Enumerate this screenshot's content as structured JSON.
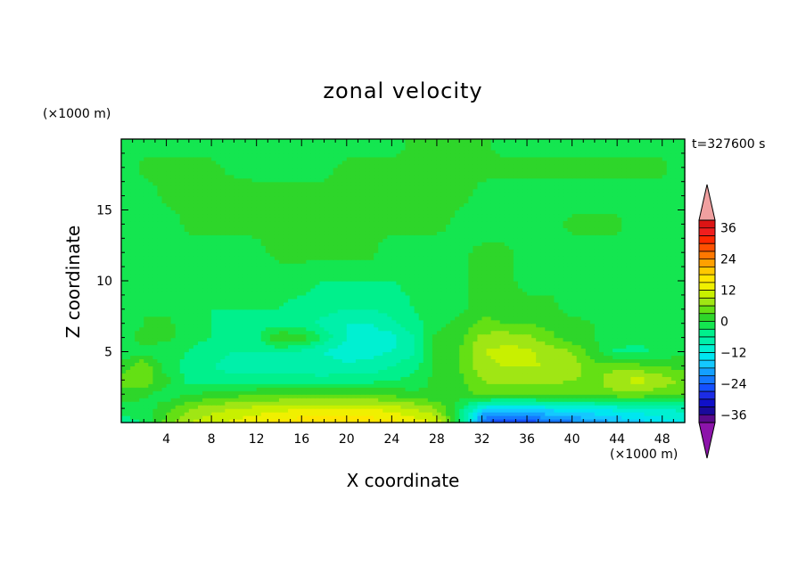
{
  "chart_data": {
    "type": "heatmap",
    "title": "zonal velocity",
    "xlabel": "X coordinate",
    "ylabel": "Z coordinate",
    "x_unit": "(×1000 m)",
    "y_unit": "(×1000 m)",
    "time_label": "t=327600 s",
    "xlim": [
      0,
      50
    ],
    "ylim": [
      0,
      20
    ],
    "xticks": [
      4,
      8,
      12,
      16,
      20,
      24,
      28,
      32,
      36,
      40,
      44,
      48
    ],
    "yticks": [
      5,
      10,
      15
    ],
    "colorbar": {
      "ticks": [
        36,
        24,
        12,
        0,
        -12,
        -24,
        -36
      ],
      "levels": [
        -39,
        -36,
        -33,
        -30,
        -27,
        -24,
        -21,
        -18,
        -15,
        -12,
        -9,
        -6,
        -3,
        0,
        3,
        6,
        9,
        12,
        15,
        18,
        21,
        24,
        27,
        30,
        33,
        36,
        39
      ],
      "colors": [
        "#5a0a8c",
        "#1a0a9c",
        "#1010c8",
        "#1c2ce6",
        "#1450ff",
        "#1478ff",
        "#14a0ff",
        "#14c8ff",
        "#00e6f0",
        "#00f0d2",
        "#00f0aa",
        "#00f08c",
        "#14e650",
        "#2ed62a",
        "#64e014",
        "#a0e614",
        "#c8f000",
        "#f0f000",
        "#ffe600",
        "#ffc800",
        "#ffa000",
        "#ff7800",
        "#ff5000",
        "#ff2800",
        "#f01e1e",
        "#dc1414"
      ],
      "under_color": "#8c14aa",
      "over_color": "#f0a0a0"
    },
    "field": {
      "description_grid": "approximate zonal velocity in m/s",
      "x": [
        0,
        2,
        4,
        6,
        8,
        10,
        12,
        14,
        16,
        18,
        20,
        22,
        24,
        26,
        28,
        30,
        32,
        34,
        36,
        38,
        40,
        42,
        44,
        46,
        48,
        50
      ],
      "z": [
        0,
        1,
        2,
        3,
        4,
        5,
        6,
        7,
        8,
        10,
        12,
        14,
        16,
        18,
        20
      ],
      "values": [
        [
          -4,
          -3,
          4,
          9,
          11,
          13,
          15,
          16,
          17,
          17,
          17,
          17,
          16,
          14,
          12,
          -3,
          -24,
          -28,
          -26,
          -24,
          -22,
          -20,
          -18,
          -16,
          -14,
          -12
        ],
        [
          -2,
          -2,
          2,
          6,
          8,
          9,
          10,
          11,
          12,
          12,
          12,
          12,
          11,
          9,
          6,
          -2,
          -14,
          -16,
          -15,
          -14,
          -13,
          -12,
          -11,
          -10,
          -9,
          -8
        ],
        [
          2,
          1,
          -2,
          0,
          1,
          2,
          3,
          3,
          3,
          3,
          3,
          3,
          2,
          1,
          0,
          1,
          4,
          4,
          4,
          4,
          3,
          4,
          5,
          5,
          4,
          3
        ],
        [
          4,
          5,
          1,
          -4,
          -5,
          -5,
          -5,
          -5,
          -5,
          -5,
          -4,
          -4,
          -3,
          -2,
          1,
          2,
          6,
          7,
          7,
          7,
          6,
          5,
          9,
          10,
          8,
          5
        ],
        [
          1,
          6,
          -2,
          -4,
          -6,
          -7,
          -7,
          -7,
          -7,
          -8,
          -8,
          -8,
          -6,
          -4,
          1,
          3,
          8,
          9,
          9,
          9,
          8,
          4,
          5,
          4,
          3,
          2
        ],
        [
          -2,
          -1,
          -2,
          -3,
          -5,
          -6,
          -6,
          -6,
          -7,
          -9,
          -11,
          -10,
          -9,
          -6,
          1,
          3,
          9,
          10,
          10,
          8,
          6,
          1,
          -4,
          -4,
          -2,
          -1
        ],
        [
          -1,
          1,
          1,
          -2,
          -3,
          -4,
          -4,
          3,
          2,
          -4,
          -9,
          -11,
          -10,
          -6,
          1,
          2,
          7,
          8,
          7,
          4,
          1,
          0,
          -1,
          -2,
          -1,
          -1
        ],
        [
          -2,
          0,
          1,
          -2,
          -3,
          -4,
          -4,
          -4,
          -5,
          -7,
          -9,
          -9,
          -7,
          -4,
          -1,
          1,
          4,
          3,
          3,
          2,
          1,
          0,
          -1,
          -1,
          -1,
          -1
        ],
        [
          -2,
          0,
          -1,
          -2,
          -3,
          -3,
          -3,
          -3,
          -4,
          -5,
          -6,
          -6,
          -5,
          -3,
          -1,
          -1,
          2,
          2,
          1,
          1,
          -1,
          -1,
          -1,
          -1,
          -1,
          -1
        ],
        [
          -2,
          -2,
          -2,
          -2,
          -2,
          -2,
          -2,
          -2,
          -2,
          -3,
          -3,
          -3,
          -3,
          -2,
          -1,
          -1,
          1,
          1,
          -1,
          -1,
          -1,
          -2,
          -2,
          -2,
          -2,
          -2
        ],
        [
          -2,
          -2,
          -2,
          -2,
          -2,
          -2,
          -1,
          1,
          1,
          1,
          1,
          1,
          -2,
          -2,
          -2,
          -1,
          1,
          1,
          -1,
          -2,
          -2,
          -2,
          -2,
          -2,
          -2,
          -2
        ],
        [
          -2,
          -2,
          -2,
          1,
          1,
          1,
          1,
          1,
          2,
          1,
          1,
          1,
          1,
          1,
          1,
          -1,
          -2,
          -2,
          -2,
          -1,
          1,
          1,
          1,
          -2,
          -2,
          -2
        ],
        [
          -2,
          -2,
          1,
          1,
          1,
          2,
          1,
          1,
          1,
          1,
          2,
          1,
          1,
          1,
          1,
          1,
          -1,
          -2,
          -2,
          -2,
          -2,
          -2,
          -2,
          -2,
          -2,
          -2
        ],
        [
          -2,
          1,
          1,
          1,
          1,
          -1,
          -1,
          -1,
          -1,
          -1,
          1,
          1,
          1,
          1,
          1,
          1,
          1,
          1,
          1,
          1,
          1,
          1,
          1,
          1,
          1,
          -2
        ],
        [
          -2,
          -2,
          -2,
          -2,
          -2,
          -2,
          -2,
          -2,
          -2,
          -2,
          -2,
          -2,
          -2,
          1,
          1,
          1,
          1,
          -2,
          -2,
          -2,
          -2,
          -2,
          -2,
          -2,
          -2,
          -2
        ]
      ]
    }
  }
}
